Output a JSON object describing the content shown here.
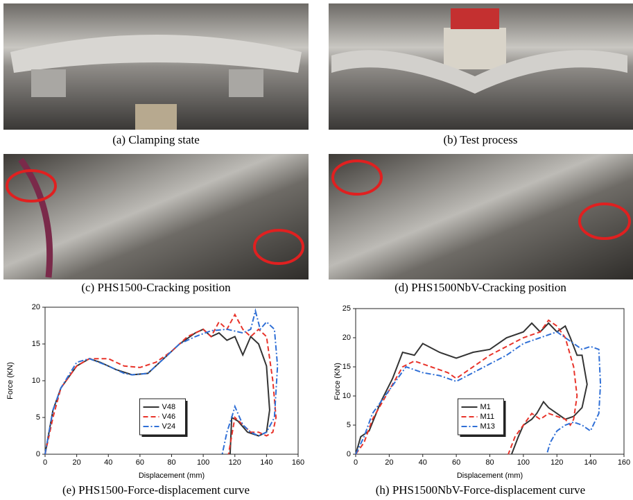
{
  "captions": {
    "a": "(a) Clamping state",
    "b": "(b) Test process",
    "c": "(c) PHS1500-Cracking position",
    "d": "(d) PHS1500NbV-Cracking position",
    "e": "(e) PHS1500-Force-displacement curve",
    "h": "(h) PHS1500NbV-Force-displacement curve"
  },
  "chart_data": [
    {
      "type": "line",
      "x_label": "Displacement (mm)",
      "y_label": "Force (KN)",
      "xlim": [
        0,
        160
      ],
      "xticks": [
        0,
        20,
        40,
        60,
        80,
        100,
        120,
        140,
        160
      ],
      "ylim": [
        0,
        20
      ],
      "yticks": [
        0,
        5,
        10,
        15,
        20
      ],
      "legend": "lower center",
      "series": [
        {
          "name": "V48",
          "color": "#333333",
          "linestyle": "solid",
          "x": [
            0,
            5,
            10,
            20,
            28,
            35,
            45,
            55,
            65,
            75,
            85,
            95,
            100,
            105,
            110,
            115,
            120,
            125,
            130,
            135,
            140,
            142,
            140,
            135,
            128,
            122,
            118,
            117
          ],
          "values": [
            0,
            6,
            9,
            12,
            13,
            12.5,
            11.5,
            10.8,
            11,
            13,
            15,
            16.5,
            17,
            16,
            16.5,
            15.5,
            16,
            13.5,
            16,
            15,
            12,
            6,
            3,
            2.5,
            3,
            4.5,
            5,
            0
          ]
        },
        {
          "name": "V46",
          "color": "#e8332a",
          "linestyle": "dashed",
          "x": [
            0,
            5,
            10,
            20,
            28,
            40,
            50,
            60,
            70,
            80,
            90,
            100,
            105,
            110,
            115,
            120,
            125,
            130,
            135,
            140,
            144,
            146,
            144,
            140,
            135,
            130,
            125,
            120,
            116
          ],
          "values": [
            0,
            5,
            9,
            12,
            13,
            13,
            12,
            11.8,
            12.5,
            14,
            16,
            17,
            16,
            18,
            17,
            19,
            17,
            16,
            17,
            16,
            10,
            5,
            3,
            2.5,
            3,
            3,
            4,
            5,
            0
          ]
        },
        {
          "name": "V24",
          "color": "#2f6fd6",
          "linestyle": "dashdot",
          "x": [
            0,
            5,
            10,
            20,
            28,
            40,
            50,
            55,
            65,
            75,
            85,
            95,
            105,
            115,
            125,
            130,
            133,
            136,
            140,
            145,
            147,
            145,
            140,
            135,
            130,
            125,
            120,
            118,
            115,
            112
          ],
          "values": [
            0,
            6,
            9,
            12.5,
            13,
            12,
            11,
            10.8,
            11,
            13,
            15,
            16,
            16.8,
            17,
            16.5,
            17,
            19.5,
            17,
            18,
            17,
            12,
            5,
            3,
            2.5,
            3,
            4,
            6.5,
            5,
            3,
            0
          ]
        }
      ]
    },
    {
      "type": "line",
      "x_label": "Displacement (mm)",
      "y_label": "Force (KN)",
      "xlim": [
        0,
        160
      ],
      "xticks": [
        0,
        20,
        40,
        60,
        80,
        100,
        120,
        140,
        160
      ],
      "ylim": [
        0,
        25
      ],
      "yticks": [
        0,
        5,
        10,
        15,
        20,
        25
      ],
      "legend": "lower center",
      "series": [
        {
          "name": "M1",
          "color": "#333333",
          "linestyle": "solid",
          "x": [
            0,
            3,
            8,
            15,
            22,
            28,
            35,
            40,
            50,
            60,
            70,
            80,
            90,
            100,
            105,
            110,
            115,
            120,
            125,
            128,
            132,
            135,
            138,
            135,
            130,
            125,
            120,
            115,
            112,
            108,
            105,
            100,
            97,
            93
          ],
          "values": [
            0,
            3,
            4,
            9,
            13,
            17.5,
            17,
            19,
            17.5,
            16.5,
            17.5,
            18,
            20,
            21,
            22.5,
            21,
            22.5,
            21,
            22,
            20,
            17,
            17,
            12,
            8,
            6.5,
            6,
            7,
            8,
            9,
            7,
            6,
            5,
            3,
            0
          ]
        },
        {
          "name": "M11",
          "color": "#e8332a",
          "linestyle": "dashed",
          "x": [
            0,
            5,
            10,
            20,
            28,
            35,
            45,
            55,
            60,
            70,
            80,
            90,
            100,
            110,
            115,
            120,
            125,
            130,
            132,
            130,
            128,
            125,
            120,
            115,
            110,
            105,
            100,
            95,
            91
          ],
          "values": [
            0,
            2,
            6,
            11,
            15,
            16,
            15,
            14,
            13,
            15,
            17,
            18.5,
            20,
            21,
            23,
            22,
            20,
            15,
            10,
            6,
            5,
            6,
            6.5,
            7,
            6,
            7,
            5,
            3,
            0
          ]
        },
        {
          "name": "M13",
          "color": "#2f6fd6",
          "linestyle": "dashdot",
          "x": [
            0,
            5,
            10,
            20,
            30,
            40,
            50,
            60,
            70,
            80,
            90,
            100,
            110,
            120,
            130,
            135,
            140,
            145,
            146,
            145,
            140,
            135,
            130,
            125,
            120,
            118,
            116,
            114
          ],
          "values": [
            0,
            3,
            7,
            11,
            15,
            14,
            13.5,
            12.5,
            14,
            15.5,
            17,
            19,
            20,
            21,
            19,
            18,
            18.5,
            18,
            12,
            7,
            4,
            5,
            5.5,
            5,
            4,
            3,
            2,
            0
          ]
        }
      ]
    }
  ]
}
